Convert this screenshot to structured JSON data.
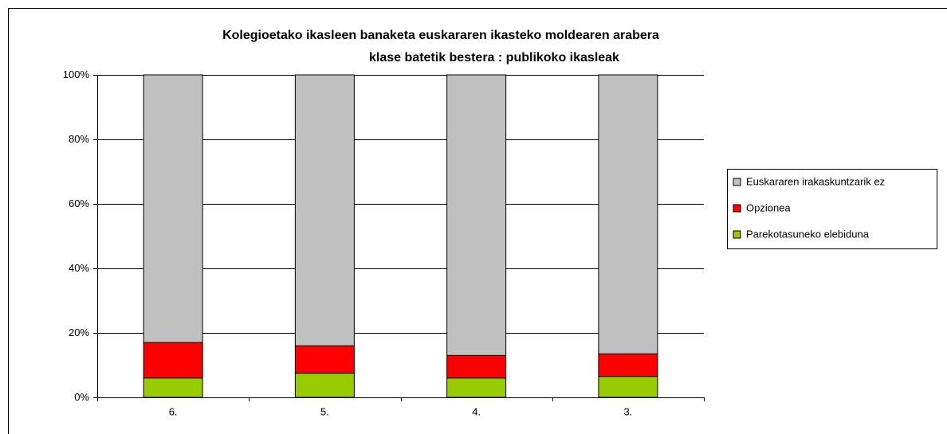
{
  "chart_data": {
    "type": "stacked_bar",
    "title": [
      "Kolegioetako ikasleen banaketa euskararen ikasteko moldearen arabera",
      "klase batetik bestera : publikoko ikasleak"
    ],
    "categories": [
      "6.",
      "5.",
      "4.",
      "3."
    ],
    "series": [
      {
        "name": "Parekotasuneko elebiduna",
        "color": "#99cc00",
        "values": [
          6,
          7.5,
          6,
          6.5
        ]
      },
      {
        "name": "Opzionea",
        "color": "#ff0000",
        "values": [
          11,
          8.5,
          7,
          7
        ]
      },
      {
        "name": "Euskararen irakaskuntzarik ez",
        "color": "#c0c0c0",
        "values": [
          83,
          84,
          87,
          86.5
        ]
      }
    ],
    "ylim": [
      0,
      100
    ],
    "yticks": [
      {
        "value": 0,
        "label": "0%"
      },
      {
        "value": 20,
        "label": "20%"
      },
      {
        "value": 40,
        "label": "40%"
      },
      {
        "value": 60,
        "label": "60%"
      },
      {
        "value": 80,
        "label": "80%"
      },
      {
        "value": 100,
        "label": "100%"
      }
    ],
    "grid": true,
    "legend": "right"
  }
}
